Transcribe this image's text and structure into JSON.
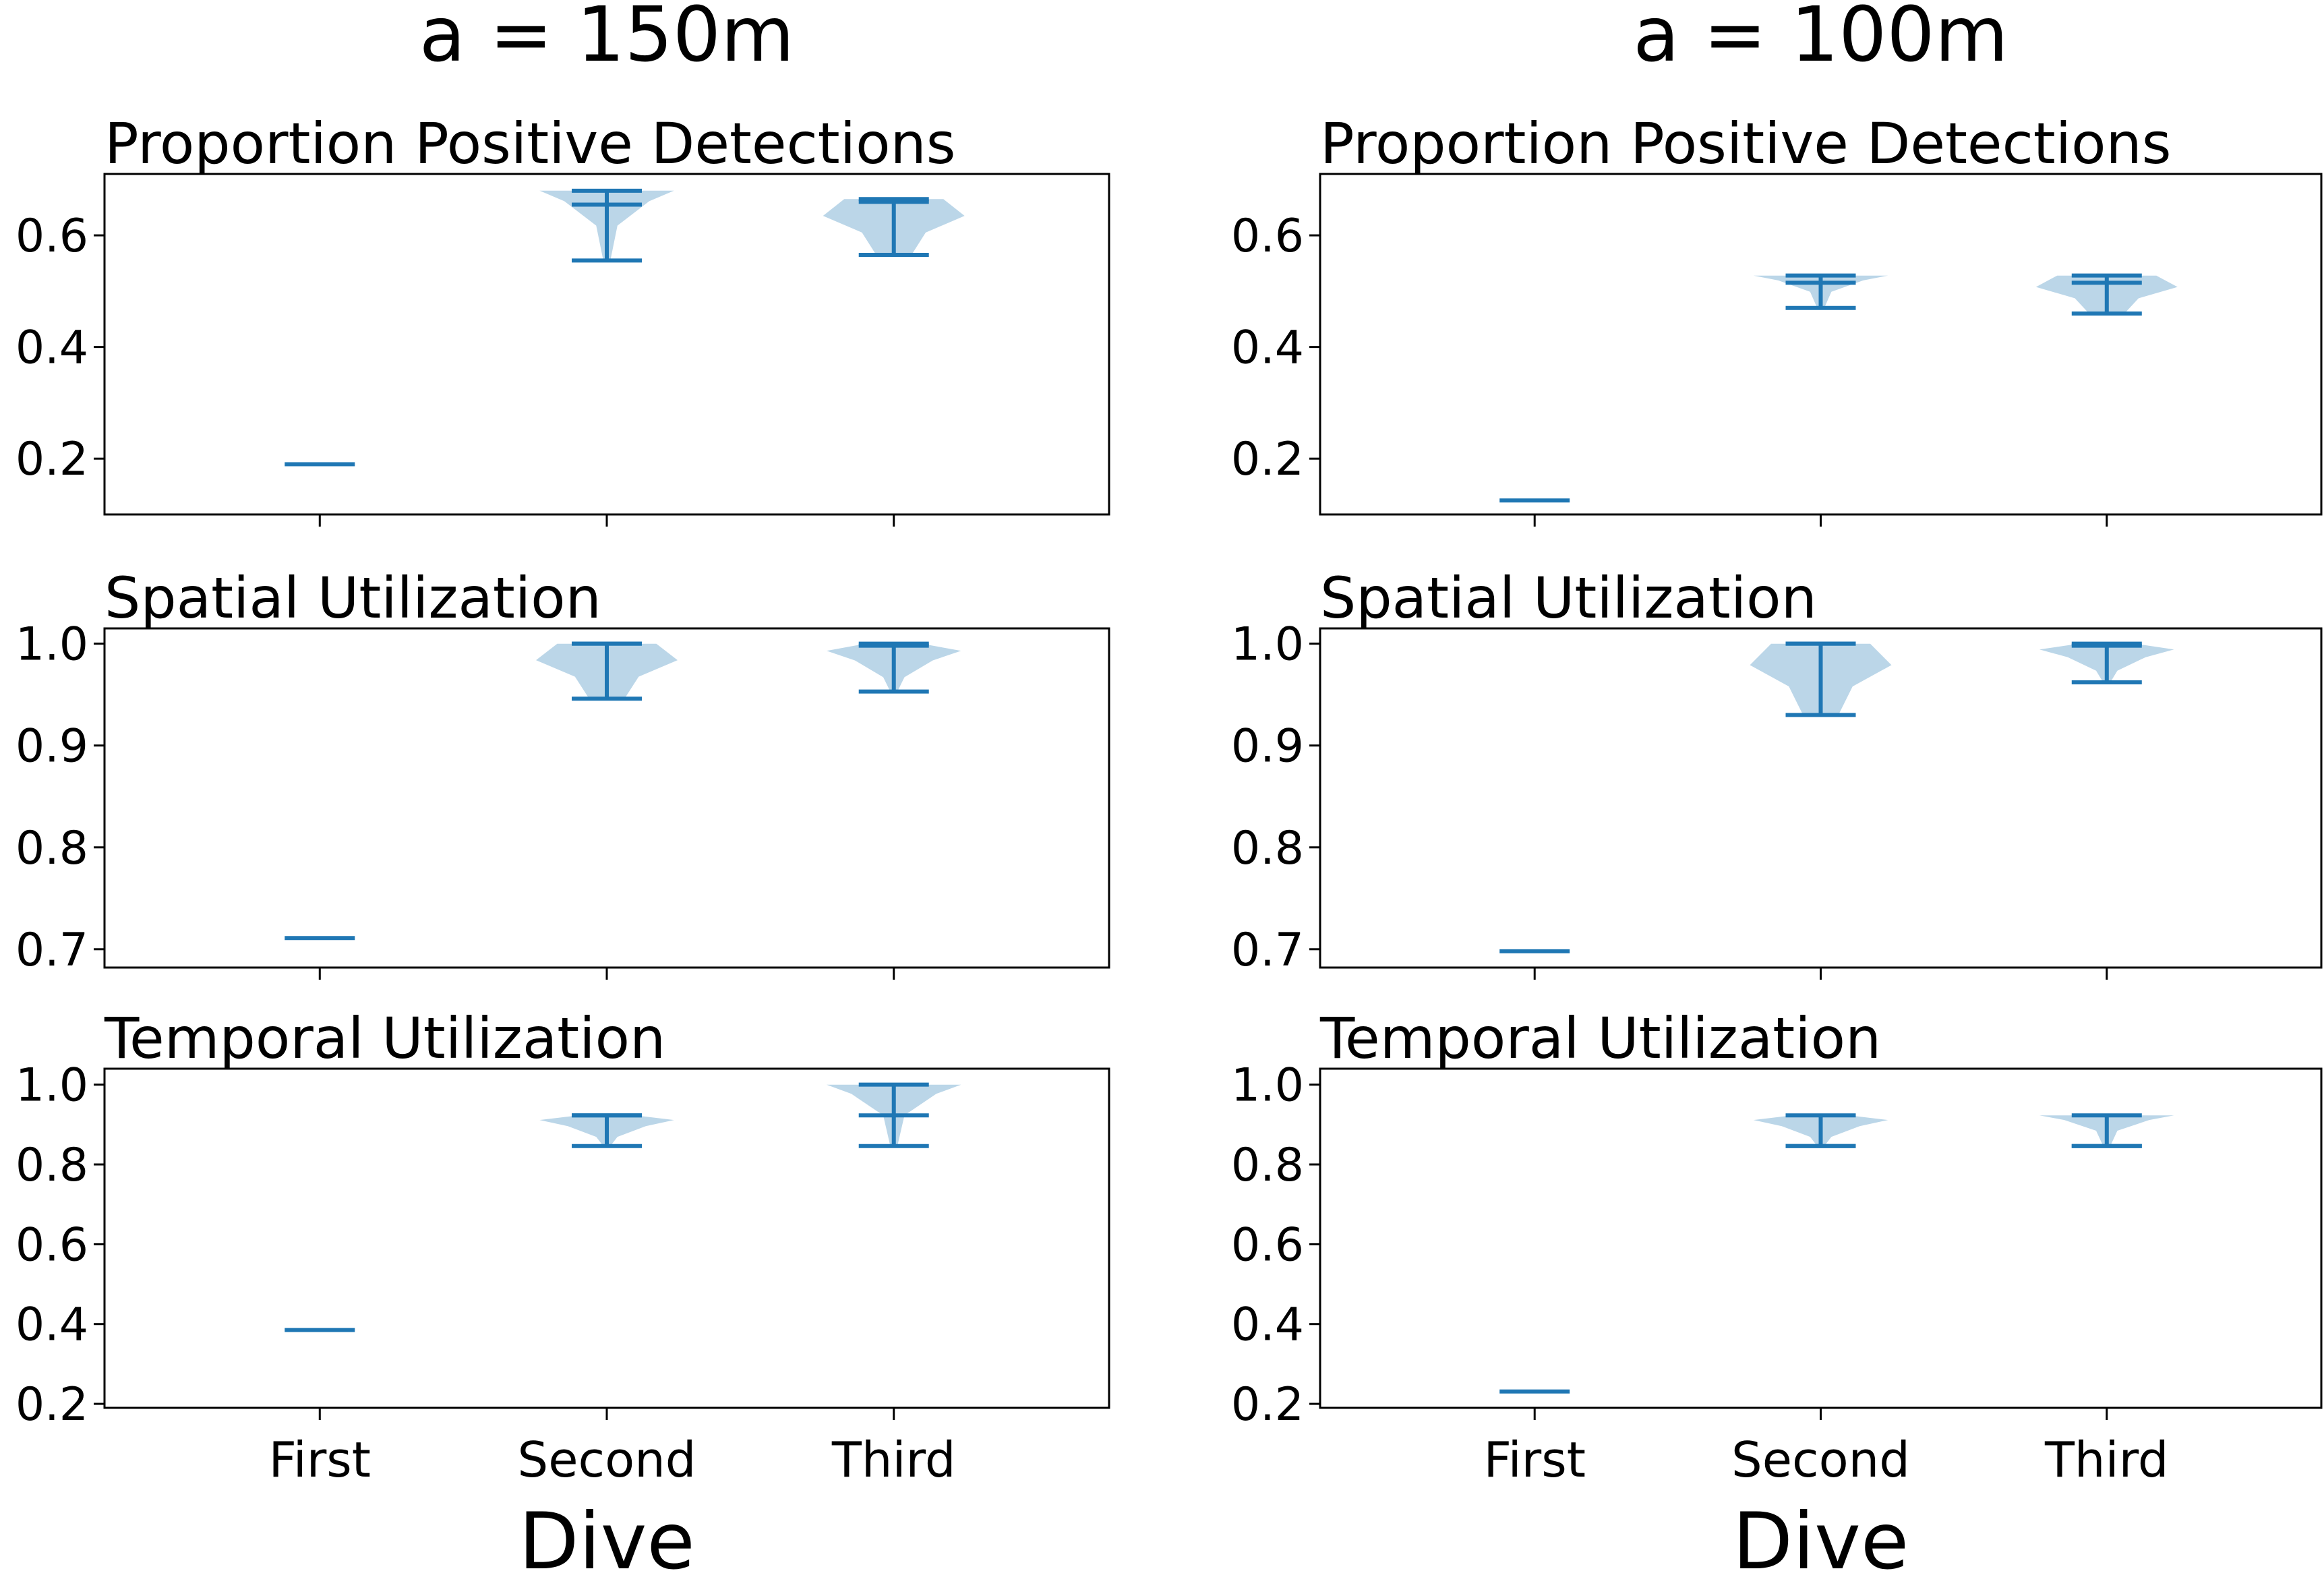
{
  "chart_data": [
    {
      "type": "violin",
      "column_title": "a = 150m",
      "title": "Proportion Positive Detections",
      "xlabel": "",
      "categories": [
        "First",
        "Second",
        "Third"
      ],
      "ylim": [
        0.1,
        0.71
      ],
      "yticks": [
        0.2,
        0.4,
        0.6
      ],
      "ytick_labels": [
        "0.2",
        "0.4",
        "0.6"
      ],
      "show_xtick_labels": false,
      "violins": [
        {
          "min": 0.19,
          "max": 0.19,
          "median": 0.19
        },
        {
          "min": 0.555,
          "max": 0.68,
          "median": 0.655
        },
        {
          "min": 0.565,
          "max": 0.665,
          "median": 0.66
        }
      ]
    },
    {
      "type": "violin",
      "column_title": "",
      "title": "Spatial Utilization",
      "xlabel": "",
      "categories": [
        "First",
        "Second",
        "Third"
      ],
      "ylim": [
        0.682,
        1.015
      ],
      "yticks": [
        0.7,
        0.8,
        0.9,
        1.0
      ],
      "ytick_labels": [
        "0.7",
        "0.8",
        "0.9",
        "1.0"
      ],
      "show_xtick_labels": false,
      "violins": [
        {
          "min": 0.711,
          "max": 0.711,
          "median": 0.711
        },
        {
          "min": 0.946,
          "max": 1.0,
          "median": 1.0
        },
        {
          "min": 0.953,
          "max": 1.0,
          "median": 0.998
        }
      ]
    },
    {
      "type": "violin",
      "column_title": "",
      "title": "Temporal Utilization",
      "xlabel": "Dive",
      "categories": [
        "First",
        "Second",
        "Third"
      ],
      "ylim": [
        0.19,
        1.04
      ],
      "yticks": [
        0.2,
        0.4,
        0.6,
        0.8,
        1.0
      ],
      "ytick_labels": [
        "0.2",
        "0.4",
        "0.6",
        "0.8",
        "1.0"
      ],
      "show_xtick_labels": true,
      "violins": [
        {
          "min": 0.385,
          "max": 0.385,
          "median": 0.385
        },
        {
          "min": 0.846,
          "max": 0.923,
          "median": 0.923
        },
        {
          "min": 0.846,
          "max": 1.0,
          "median": 0.923
        }
      ]
    },
    {
      "type": "violin",
      "column_title": "a = 100m",
      "title": "Proportion Positive Detections",
      "xlabel": "",
      "categories": [
        "First",
        "Second",
        "Third"
      ],
      "ylim": [
        0.1,
        0.71
      ],
      "yticks": [
        0.2,
        0.4,
        0.6
      ],
      "ytick_labels": [
        "0.2",
        "0.4",
        "0.6"
      ],
      "show_xtick_labels": false,
      "violins": [
        {
          "min": 0.125,
          "max": 0.125,
          "median": 0.125
        },
        {
          "min": 0.47,
          "max": 0.528,
          "median": 0.515
        },
        {
          "min": 0.46,
          "max": 0.528,
          "median": 0.515
        }
      ]
    },
    {
      "type": "violin",
      "column_title": "",
      "title": "Spatial Utilization",
      "xlabel": "",
      "categories": [
        "First",
        "Second",
        "Third"
      ],
      "ylim": [
        0.682,
        1.015
      ],
      "yticks": [
        0.7,
        0.8,
        0.9,
        1.0
      ],
      "ytick_labels": [
        "0.7",
        "0.8",
        "0.9",
        "1.0"
      ],
      "show_xtick_labels": false,
      "violins": [
        {
          "min": 0.698,
          "max": 0.698,
          "median": 0.698
        },
        {
          "min": 0.93,
          "max": 1.0,
          "median": 1.0
        },
        {
          "min": 0.962,
          "max": 1.0,
          "median": 0.998
        }
      ]
    },
    {
      "type": "violin",
      "column_title": "",
      "title": "Temporal Utilization",
      "xlabel": "Dive",
      "categories": [
        "First",
        "Second",
        "Third"
      ],
      "ylim": [
        0.19,
        1.04
      ],
      "yticks": [
        0.2,
        0.4,
        0.6,
        0.8,
        1.0
      ],
      "ytick_labels": [
        "0.2",
        "0.4",
        "0.6",
        "0.8",
        "1.0"
      ],
      "show_xtick_labels": true,
      "violins": [
        {
          "min": 0.231,
          "max": 0.231,
          "median": 0.231
        },
        {
          "min": 0.846,
          "max": 0.923,
          "median": 0.846
        },
        {
          "min": 0.846,
          "max": 0.923,
          "median": 0.846
        }
      ]
    }
  ]
}
